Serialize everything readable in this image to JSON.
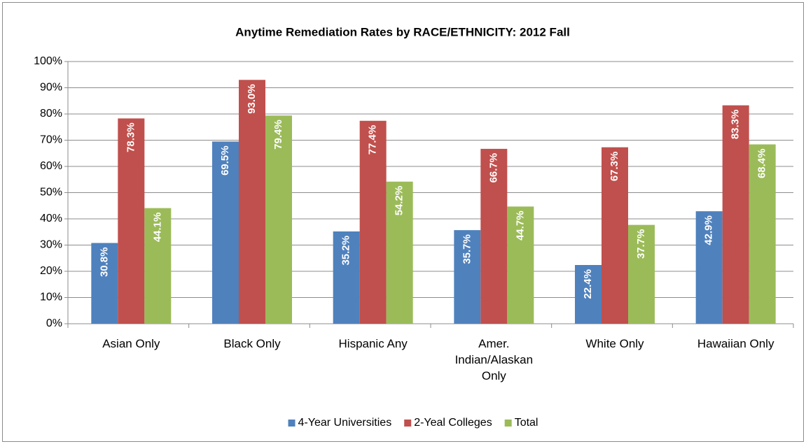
{
  "chart_data": {
    "type": "bar",
    "title": "Anytime Remediation Rates by RACE/ETHNICITY: 2012 Fall",
    "categories": [
      "Asian Only",
      "Black Only",
      "Hispanic Any",
      "Amer. Indian/Alaskan Only",
      "White Only",
      "Hawaiian Only"
    ],
    "series": [
      {
        "name": "4-Year Universities",
        "color": "#4f81bd",
        "values": [
          30.8,
          69.5,
          35.2,
          35.7,
          22.4,
          42.9
        ],
        "value_labels": [
          "30.8%",
          "69.5%",
          "35.2%",
          "35.7%",
          "22.4%",
          "42.9%"
        ]
      },
      {
        "name": "2-Yeal Colleges",
        "color": "#c0504d",
        "values": [
          78.3,
          93.0,
          77.4,
          66.7,
          67.3,
          83.3
        ],
        "value_labels": [
          "78.3%",
          "93.0%",
          "77.4%",
          "66.7%",
          "67.3%",
          "83.3%"
        ]
      },
      {
        "name": "Total",
        "color": "#9bbb59",
        "values": [
          44.1,
          79.4,
          54.2,
          44.7,
          37.7,
          68.4
        ],
        "value_labels": [
          "44.1%",
          "79.4%",
          "54.2%",
          "44.7%",
          "37.7%",
          "68.4%"
        ]
      }
    ],
    "ylim": [
      0,
      100
    ],
    "yticks": [
      {
        "value": 0,
        "label": "0%"
      },
      {
        "value": 10,
        "label": "10%"
      },
      {
        "value": 20,
        "label": "20%"
      },
      {
        "value": 30,
        "label": "30%"
      },
      {
        "value": 40,
        "label": "40%"
      },
      {
        "value": 50,
        "label": "50%"
      },
      {
        "value": 60,
        "label": "60%"
      },
      {
        "value": 70,
        "label": "70%"
      },
      {
        "value": 80,
        "label": "80%"
      },
      {
        "value": 90,
        "label": "90%"
      },
      {
        "value": 100,
        "label": "100%"
      }
    ],
    "grid": true,
    "legend": "bottom"
  }
}
